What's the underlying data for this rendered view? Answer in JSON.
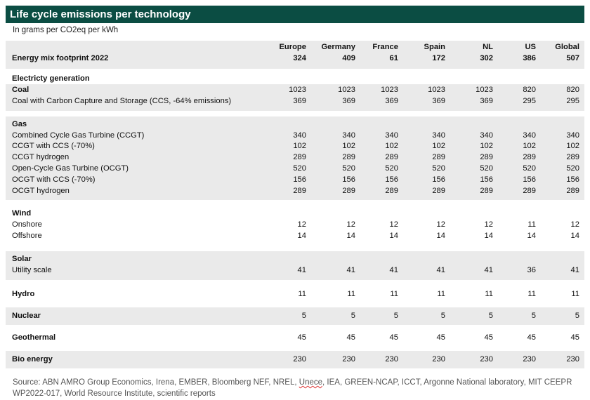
{
  "title": "Life cycle emissions per technology",
  "subtitle": "In grams per CO2eq per kWh",
  "columns": [
    "Europe",
    "Germany",
    "France",
    "Spain",
    "NL",
    "US",
    "Global"
  ],
  "mix_row": {
    "label": "Energy mix footprint 2022",
    "values": [
      "324",
      "409",
      "61",
      "172",
      "302",
      "386",
      "507"
    ]
  },
  "section_electricity": "Electricty generation",
  "groups": [
    {
      "name": "Coal",
      "rows": [
        {
          "label": "Coal",
          "bold": true,
          "values": [
            "1023",
            "1023",
            "1023",
            "1023",
            "1023",
            "820",
            "820"
          ]
        },
        {
          "label": "Coal with Carbon Capture and Storage (CCS, -64% emissions)",
          "values": [
            "369",
            "369",
            "369",
            "369",
            "369",
            "295",
            "295"
          ]
        }
      ]
    },
    {
      "name": "Gas",
      "rows": [
        {
          "label": "Combined Cycle Gas Turbine (CCGT)",
          "values": [
            "340",
            "340",
            "340",
            "340",
            "340",
            "340",
            "340"
          ]
        },
        {
          "label": "CCGT with CCS (-70%)",
          "values": [
            "102",
            "102",
            "102",
            "102",
            "102",
            "102",
            "102"
          ]
        },
        {
          "label": "CCGT hydrogen",
          "values": [
            "289",
            "289",
            "289",
            "289",
            "289",
            "289",
            "289"
          ]
        },
        {
          "label": "Open-Cycle Gas Turbine (OCGT)",
          "values": [
            "520",
            "520",
            "520",
            "520",
            "520",
            "520",
            "520"
          ]
        },
        {
          "label": "OCGT with CCS (-70%)",
          "values": [
            "156",
            "156",
            "156",
            "156",
            "156",
            "156",
            "156"
          ]
        },
        {
          "label": "OCGT hydrogen",
          "values": [
            "289",
            "289",
            "289",
            "289",
            "289",
            "289",
            "289"
          ]
        }
      ]
    },
    {
      "name": "Wind",
      "rows": [
        {
          "label": "Onshore",
          "values": [
            "12",
            "12",
            "12",
            "12",
            "12",
            "11",
            "12"
          ]
        },
        {
          "label": "Offshore",
          "values": [
            "14",
            "14",
            "14",
            "14",
            "14",
            "14",
            "14"
          ]
        }
      ]
    },
    {
      "name": "Solar",
      "rows": [
        {
          "label": "Utility scale",
          "values": [
            "41",
            "41",
            "41",
            "41",
            "41",
            "36",
            "41"
          ]
        }
      ]
    }
  ],
  "single_rows": [
    {
      "label": "Hydro",
      "values": [
        "11",
        "11",
        "11",
        "11",
        "11",
        "11",
        "11"
      ]
    },
    {
      "label": "Nuclear",
      "values": [
        "5",
        "5",
        "5",
        "5",
        "5",
        "5",
        "5"
      ]
    },
    {
      "label": "Geothermal",
      "values": [
        "45",
        "45",
        "45",
        "45",
        "45",
        "45",
        "45"
      ]
    },
    {
      "label": "Bio energy",
      "values": [
        "230",
        "230",
        "230",
        "230",
        "230",
        "230",
        "230"
      ]
    }
  ],
  "source_before": "Source: ABN AMRO Group Economics, Irena, EMBER, Bloomberg NEF, NREL, ",
  "source_squiggle": "Unece",
  "source_after": ", IEA,  GREEN-NCAP, ICCT, Argonne National laboratory, MIT CEEPR WP2022-017, World Resource Institute, scientific reports"
}
